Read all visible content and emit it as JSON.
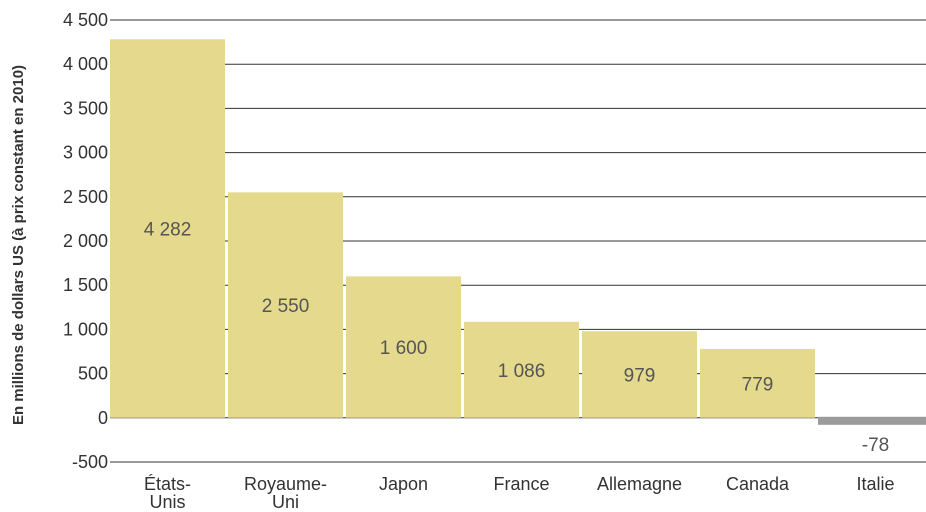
{
  "chart_data": {
    "type": "bar",
    "categories": [
      [
        "États-",
        "Unis"
      ],
      [
        "Royaume-",
        "Uni"
      ],
      [
        "Japon"
      ],
      [
        "France"
      ],
      [
        "Allemagne"
      ],
      [
        "Canada"
      ],
      [
        "Italie"
      ]
    ],
    "values": [
      4282,
      2550,
      1600,
      1086,
      979,
      779,
      -78
    ],
    "value_labels": [
      "4 282",
      "2 550",
      "1 600",
      "1 086",
      "979",
      "779",
      "-78"
    ],
    "ylabel": "En millions de dollars US (à prix constant en 2010)",
    "ylim": [
      -500,
      4500
    ],
    "yticks": [
      -500,
      0,
      500,
      1000,
      1500,
      2000,
      2500,
      3000,
      3500,
      4000,
      4500
    ],
    "ytick_labels": [
      "-500",
      "0",
      "500",
      "1 000",
      "1 500",
      "2 000",
      "2 500",
      "3 000",
      "3 500",
      "4 000",
      "4 500"
    ],
    "grid": true,
    "colors": {
      "positive": "#e4d98c",
      "negative": "#9b9b9b",
      "grid": "#333333"
    }
  }
}
